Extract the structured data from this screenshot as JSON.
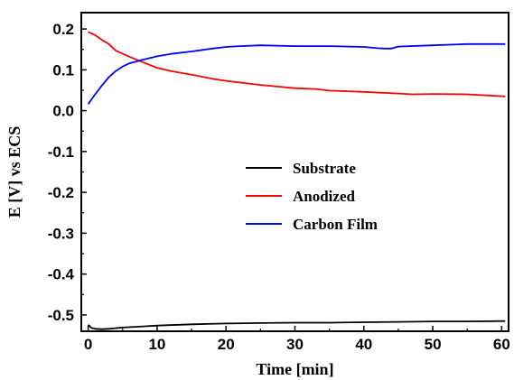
{
  "chart_data": {
    "type": "line",
    "xlabel": "Time [min]",
    "ylabel": "E [V] vs ECS",
    "xlim": [
      -1,
      61
    ],
    "ylim": [
      -0.54,
      0.24
    ],
    "x_ticks": [
      0,
      10,
      20,
      30,
      40,
      50,
      60
    ],
    "x_tick_labels": [
      "0",
      "10",
      "20",
      "30",
      "40",
      "50",
      "60"
    ],
    "y_ticks": [
      0.2,
      0.1,
      0.0,
      -0.1,
      -0.2,
      -0.3,
      -0.4,
      -0.5
    ],
    "y_tick_labels": [
      "0.2",
      "0.1",
      "0.0",
      "-0.1",
      "-0.2",
      "-0.3",
      "-0.4",
      "-0.5"
    ],
    "grid": false,
    "legend_position": "center-right",
    "series": [
      {
        "name": "Substrate",
        "color": "#000000",
        "x": [
          0,
          0.5,
          1,
          2,
          3,
          5,
          8,
          10,
          15,
          20,
          25,
          30,
          35,
          40,
          45,
          50,
          55,
          60.5
        ],
        "y": [
          -0.524,
          -0.532,
          -0.534,
          -0.535,
          -0.534,
          -0.531,
          -0.528,
          -0.526,
          -0.523,
          -0.521,
          -0.52,
          -0.519,
          -0.519,
          -0.518,
          -0.517,
          -0.516,
          -0.516,
          -0.515
        ]
      },
      {
        "name": "Anodized",
        "color": "#ff0000",
        "x": [
          0,
          1,
          2,
          3,
          4,
          6,
          8,
          10,
          12,
          15,
          18,
          20,
          25,
          30,
          33,
          35,
          40,
          45,
          47,
          50,
          55,
          60.5
        ],
        "y": [
          0.193,
          0.185,
          0.173,
          0.163,
          0.147,
          0.132,
          0.118,
          0.105,
          0.097,
          0.088,
          0.078,
          0.073,
          0.063,
          0.055,
          0.053,
          0.049,
          0.046,
          0.042,
          0.04,
          0.041,
          0.04,
          0.035
        ]
      },
      {
        "name": "Carbon Film",
        "color": "#0000ff",
        "x": [
          0,
          1,
          2,
          3,
          4,
          5,
          6,
          8,
          10,
          12,
          15,
          18,
          20,
          22,
          25,
          30,
          35,
          40,
          42,
          43,
          44,
          45,
          50,
          55,
          60.5
        ],
        "y": [
          0.016,
          0.04,
          0.062,
          0.082,
          0.097,
          0.108,
          0.116,
          0.125,
          0.133,
          0.139,
          0.145,
          0.152,
          0.156,
          0.158,
          0.16,
          0.158,
          0.158,
          0.156,
          0.153,
          0.152,
          0.152,
          0.157,
          0.16,
          0.163,
          0.163
        ]
      }
    ]
  }
}
